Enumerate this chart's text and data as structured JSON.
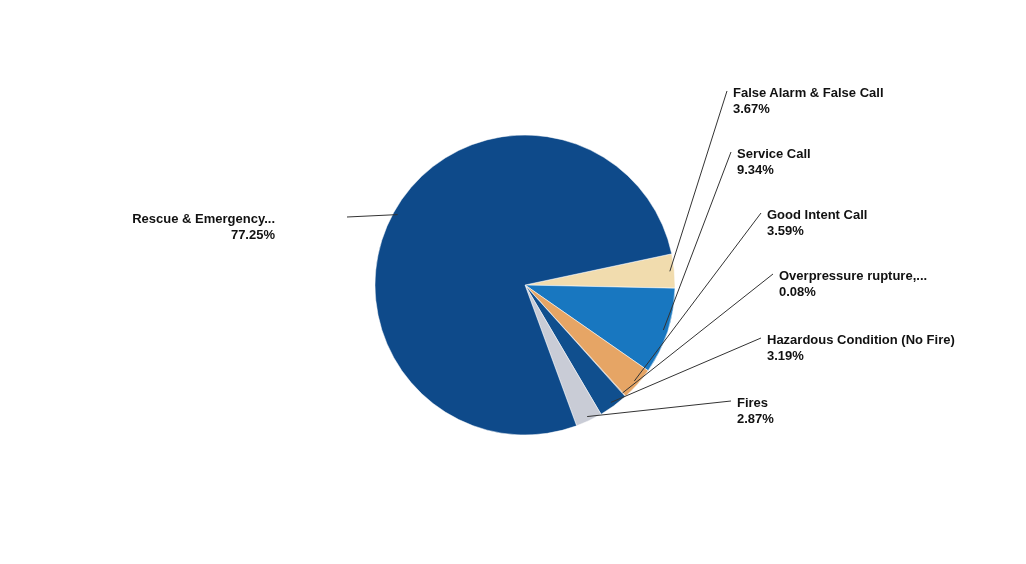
{
  "chart_data": {
    "type": "pie",
    "categories": [
      "False Alarm & False Call",
      "Service Call",
      "Good Intent Call",
      "Overpressure rupture,...",
      "Hazardous Condition (No Fire)",
      "Fires",
      "Rescue & Emergency..."
    ],
    "values": [
      3.67,
      9.34,
      3.59,
      0.08,
      3.19,
      2.87,
      77.25
    ],
    "value_labels": [
      "3.67%",
      "9.34%",
      "3.59%",
      "0.08%",
      "3.19%",
      "2.87%",
      "77.25%"
    ],
    "colors": [
      "#f1dcae",
      "#1877c0",
      "#e6a565",
      "#b9804e",
      "#104f8e",
      "#c9ccd6",
      "#0e4a8a"
    ]
  }
}
